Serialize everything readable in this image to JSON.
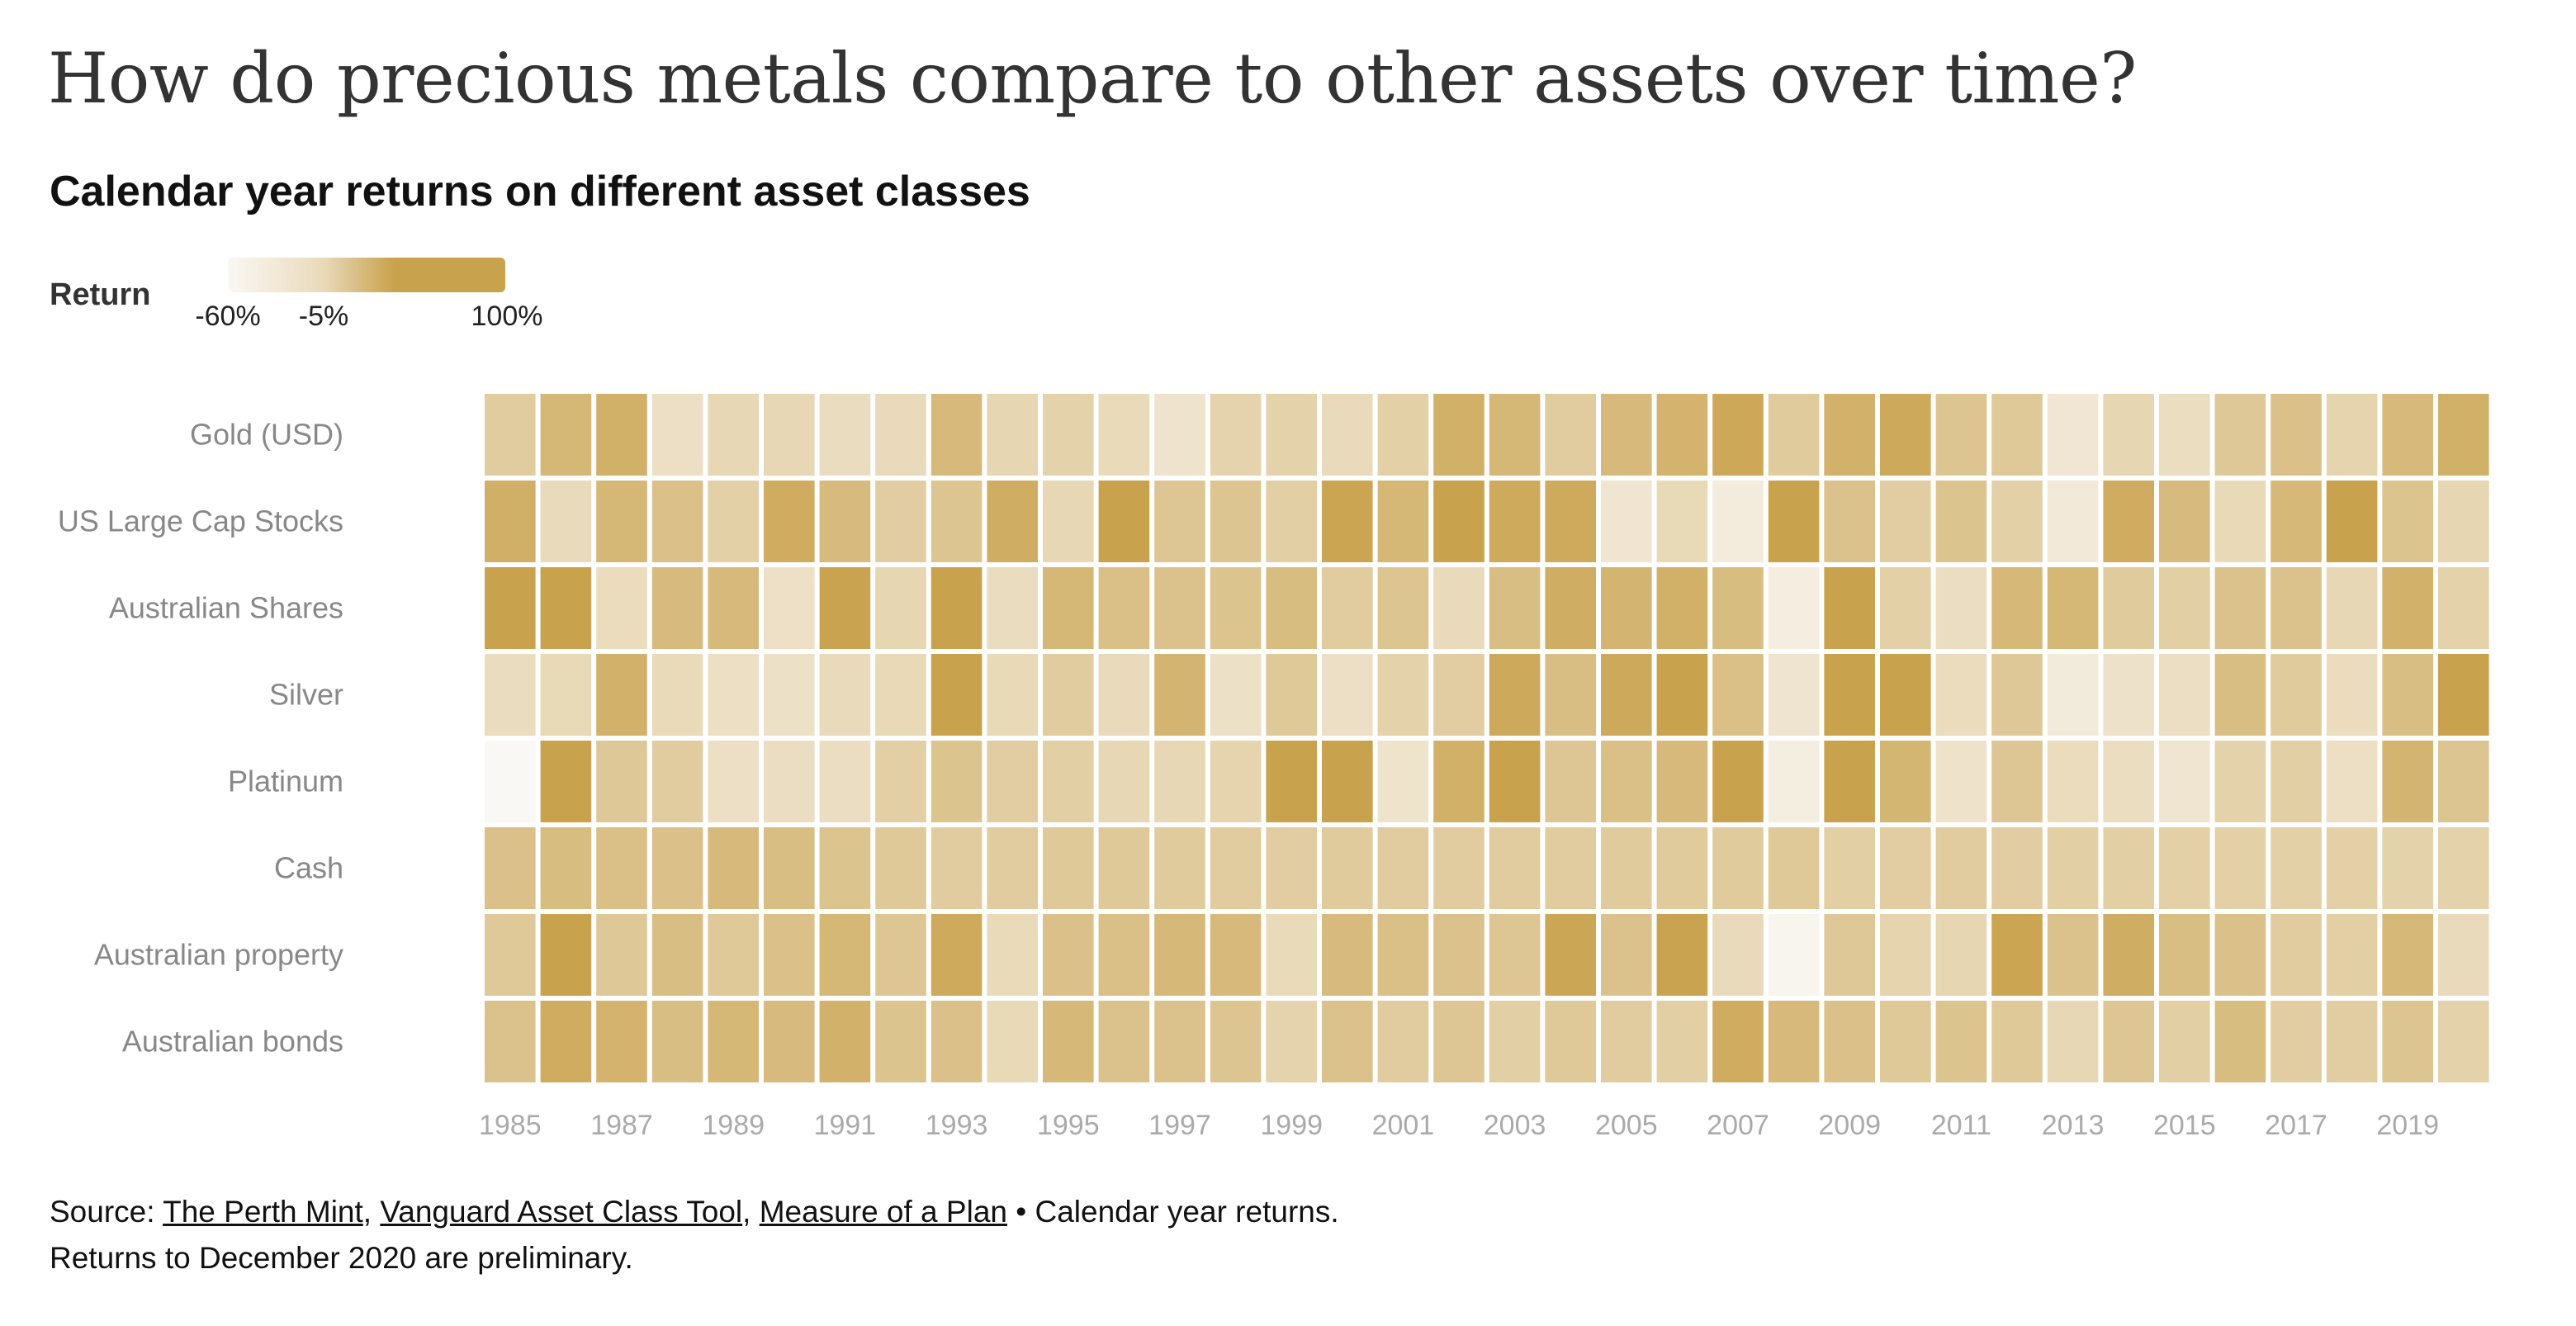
{
  "title": "How do precious metals compare to other assets over time?",
  "subtitle": "Calendar year returns on different asset classes",
  "legend": {
    "title": "Return",
    "ticks": [
      "-60%",
      "-5%",
      "100%"
    ],
    "tick_values": [
      -60,
      -5,
      100
    ]
  },
  "colors": {
    "low": "#faf8f5",
    "high": "#c9a24d",
    "label": "#888888",
    "axis": "#aaaaaa"
  },
  "source": {
    "prefix": "Source: ",
    "link1": "The Perth Mint",
    "sep1": ", ",
    "link2": "Vanguard Asset Class Tool",
    "sep2": ", ",
    "link3": "Measure of a Plan",
    "suffix": " • Calendar year returns.",
    "line2": "Returns to December 2020 are preliminary."
  },
  "chart_data": {
    "type": "heatmap",
    "title": "Calendar year returns on different asset classes",
    "x": [
      1985,
      1986,
      1987,
      1988,
      1989,
      1990,
      1991,
      1992,
      1993,
      1994,
      1995,
      1996,
      1997,
      1998,
      1999,
      2000,
      2001,
      2002,
      2003,
      2004,
      2005,
      2006,
      2007,
      2008,
      2009,
      2010,
      2011,
      2012,
      2013,
      2014,
      2015,
      2016,
      2017,
      2018,
      2019,
      2020
    ],
    "x_tick_labels": [
      "1985",
      "1987",
      "1989",
      "1991",
      "1993",
      "1995",
      "1997",
      "1999",
      "2001",
      "2003",
      "2005",
      "2007",
      "2009",
      "2011",
      "2013",
      "2015",
      "2017",
      "2019"
    ],
    "y": [
      "Gold (USD)",
      "US Large Cap Stocks",
      "Australian Shares",
      "Silver",
      "Platinum",
      "Cash",
      "Australian property",
      "Australian bonds"
    ],
    "color_scale": {
      "min": -60,
      "mid": -5,
      "max": 100
    },
    "values": [
      [
        5,
        20,
        25,
        -15,
        -3,
        -3,
        -9,
        -6,
        18,
        -2,
        1,
        -5,
        -22,
        0,
        1,
        -6,
        2,
        25,
        20,
        5,
        18,
        23,
        31,
        6,
        24,
        30,
        10,
        7,
        -28,
        -2,
        -10,
        8,
        13,
        -1,
        18,
        25
      ],
      [
        26,
        -6,
        20,
        13,
        2,
        28,
        17,
        4,
        10,
        27,
        -3,
        37,
        9,
        10,
        3,
        33,
        20,
        42,
        29,
        29,
        -25,
        -4,
        -38,
        48,
        12,
        4,
        11,
        2,
        -33,
        28,
        17,
        -4,
        19,
        35,
        11,
        -2
      ],
      [
        44,
        42,
        -8,
        17,
        18,
        -17,
        34,
        -2,
        45,
        -9,
        20,
        14,
        12,
        11,
        16,
        5,
        10,
        -6,
        15,
        27,
        22,
        25,
        16,
        -40,
        37,
        2,
        -11,
        19,
        20,
        6,
        3,
        12,
        12,
        -3,
        24,
        1
      ],
      [
        -9,
        -4,
        24,
        -5,
        -14,
        -16,
        -6,
        -4,
        37,
        -4,
        5,
        -6,
        22,
        -16,
        7,
        -15,
        1,
        4,
        30,
        15,
        30,
        46,
        14,
        -24,
        49,
        83,
        -8,
        8,
        -35,
        -19,
        -12,
        15,
        6,
        -8,
        15,
        48
      ],
      [
        -60,
        38,
        8,
        5,
        -15,
        -11,
        -11,
        3,
        11,
        4,
        3,
        -3,
        -3,
        -1,
        55,
        48,
        -21,
        25,
        35,
        9,
        14,
        18,
        35,
        -41,
        57,
        21,
        -20,
        9,
        -8,
        -10,
        -26,
        1,
        3,
        -14,
        22,
        10
      ],
      [
        13,
        16,
        14,
        13,
        18,
        15,
        11,
        7,
        5,
        5,
        7,
        7,
        6,
        5,
        4,
        6,
        5,
        5,
        5,
        5,
        6,
        6,
        6,
        7,
        3,
        4,
        5,
        4,
        3,
        3,
        2,
        2,
        2,
        2,
        1,
        1
      ],
      [
        7,
        40,
        8,
        15,
        7,
        13,
        20,
        9,
        29,
        -5,
        13,
        14,
        19,
        18,
        -5,
        17,
        14,
        12,
        9,
        32,
        12,
        34,
        -6,
        -54,
        8,
        -1,
        -2,
        33,
        12,
        27,
        15,
        13,
        5,
        3,
        19,
        -6
      ],
      [
        12,
        28,
        23,
        15,
        20,
        17,
        24,
        11,
        13,
        -4,
        19,
        12,
        12,
        10,
        0,
        12,
        5,
        9,
        3,
        7,
        5,
        3,
        28,
        18,
        13,
        7,
        11,
        7,
        -3,
        9,
        3,
        16,
        4,
        4,
        10,
        1
      ]
    ]
  }
}
